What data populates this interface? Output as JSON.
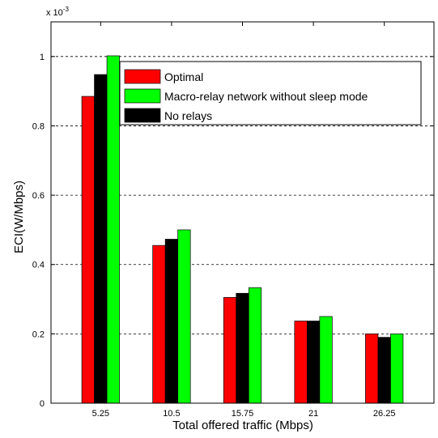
{
  "chart_data": {
    "type": "bar",
    "xlabel": "Total offered traffic  (Mbps)",
    "ylabel": "ECI(W/Mbps)",
    "y_multiplier": "x 10",
    "y_multiplier_exponent": "-3",
    "categories": [
      "5.25",
      "10.5",
      "15.75",
      "21",
      "26.25"
    ],
    "ylim": [
      0,
      1.1
    ],
    "yticks": [
      0,
      0.2,
      0.4,
      0.6,
      0.8,
      1
    ],
    "ytick_labels": [
      "0",
      "0.2",
      "0.4",
      "0.6",
      "0.8",
      "1"
    ],
    "grid": "horizontal dashed",
    "legend_position": "top-right",
    "series": [
      {
        "name": "Optimal",
        "color": "#ff0000",
        "values": [
          0.885,
          0.455,
          0.305,
          0.237,
          0.2
        ]
      },
      {
        "name": "No relays",
        "color": "#000000",
        "values": [
          0.948,
          0.473,
          0.317,
          0.237,
          0.19
        ]
      },
      {
        "name": "Macro-relay network without sleep mode",
        "color": "#00ff00",
        "values": [
          1.002,
          0.5,
          0.333,
          0.25,
          0.2
        ]
      }
    ],
    "legend_order": [
      0,
      2,
      1
    ]
  }
}
